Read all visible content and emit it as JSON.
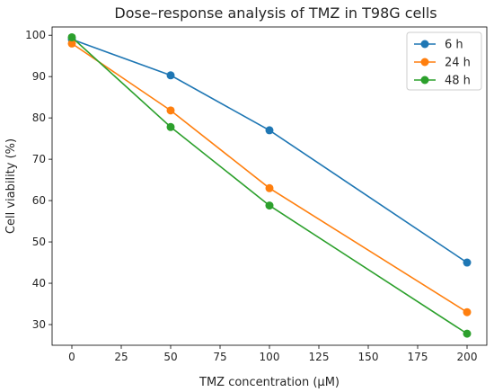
{
  "chart_data": {
    "type": "line",
    "title": "Dose–response analysis of TMZ in T98G cells",
    "xlabel": "TMZ concentration (μM)",
    "ylabel": "Cell viability (%)",
    "x": [
      0,
      50,
      100,
      200
    ],
    "xlim": [
      -10,
      210
    ],
    "ylim": [
      25,
      102
    ],
    "xticks": [
      0,
      25,
      50,
      75,
      100,
      125,
      150,
      175,
      200
    ],
    "yticks": [
      30,
      40,
      50,
      60,
      70,
      80,
      90,
      100
    ],
    "grid": false,
    "legend_position": "top-right",
    "series": [
      {
        "name": "6 h",
        "color": "#1f77b4",
        "values": [
          99.0,
          90.3,
          77.0,
          45.0
        ]
      },
      {
        "name": "24 h",
        "color": "#ff7f0e",
        "values": [
          98.0,
          81.8,
          63.0,
          33.0
        ]
      },
      {
        "name": "48 h",
        "color": "#2ca02c",
        "values": [
          99.5,
          77.8,
          58.8,
          27.8
        ]
      }
    ]
  }
}
